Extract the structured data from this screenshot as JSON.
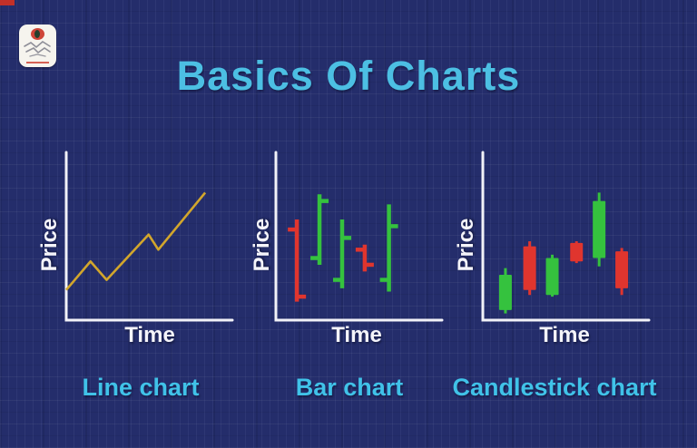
{
  "header": {
    "title": "Basics Of Charts"
  },
  "logo": {
    "shape": "rounded-white-square",
    "accent_color": "#cf4639",
    "sketch_color": "#8f8f98"
  },
  "colors": {
    "background": "#242d6b",
    "title": "#4cbfe3",
    "caption": "#40c2e8",
    "axis": "#f2f2f8",
    "axis_label": "#f4f4fa",
    "line": "#d2a62c",
    "up": "#35c23e",
    "down": "#e0352e"
  },
  "chart_data": [
    {
      "type": "line",
      "caption": "Line chart",
      "xlabel": "Time",
      "ylabel": "Price",
      "axes": "schematic, no ticks or numeric scale; values normalized 0-1",
      "line_color": "#d2a62c",
      "points": [
        {
          "t": 0.0,
          "price": 0.18
        },
        {
          "t": 0.15,
          "price": 0.35
        },
        {
          "t": 0.25,
          "price": 0.24
        },
        {
          "t": 0.51,
          "price": 0.51
        },
        {
          "t": 0.57,
          "price": 0.42
        },
        {
          "t": 0.86,
          "price": 0.76
        }
      ]
    },
    {
      "type": "ohlc-bar",
      "caption": "Bar chart",
      "xlabel": "Time",
      "ylabel": "Price",
      "axes": "schematic, no ticks or numeric scale; values normalized 0-1",
      "bars": [
        {
          "t": 0.13,
          "open": 0.54,
          "high": 0.6,
          "low": 0.11,
          "close": 0.14,
          "direction": "down"
        },
        {
          "t": 0.27,
          "open": 0.37,
          "high": 0.75,
          "low": 0.33,
          "close": 0.71,
          "direction": "up"
        },
        {
          "t": 0.41,
          "open": 0.24,
          "high": 0.6,
          "low": 0.19,
          "close": 0.49,
          "direction": "up"
        },
        {
          "t": 0.55,
          "open": 0.42,
          "high": 0.45,
          "low": 0.29,
          "close": 0.33,
          "direction": "down"
        },
        {
          "t": 0.7,
          "open": 0.24,
          "high": 0.69,
          "low": 0.17,
          "close": 0.56,
          "direction": "up"
        }
      ]
    },
    {
      "type": "candlestick",
      "caption": "Candlestick chart",
      "xlabel": "Time",
      "ylabel": "Price",
      "axes": "schematic, no ticks or numeric scale; values normalized 0-1",
      "candles": [
        {
          "t": 0.14,
          "open": 0.06,
          "high": 0.31,
          "low": 0.04,
          "close": 0.27,
          "direction": "up"
        },
        {
          "t": 0.29,
          "open": 0.44,
          "high": 0.47,
          "low": 0.15,
          "close": 0.18,
          "direction": "down"
        },
        {
          "t": 0.43,
          "open": 0.15,
          "high": 0.39,
          "low": 0.14,
          "close": 0.37,
          "direction": "up"
        },
        {
          "t": 0.58,
          "open": 0.46,
          "high": 0.47,
          "low": 0.34,
          "close": 0.35,
          "direction": "down"
        },
        {
          "t": 0.72,
          "open": 0.37,
          "high": 0.76,
          "low": 0.32,
          "close": 0.71,
          "direction": "up"
        },
        {
          "t": 0.86,
          "open": 0.41,
          "high": 0.43,
          "low": 0.15,
          "close": 0.19,
          "direction": "down"
        }
      ]
    }
  ]
}
